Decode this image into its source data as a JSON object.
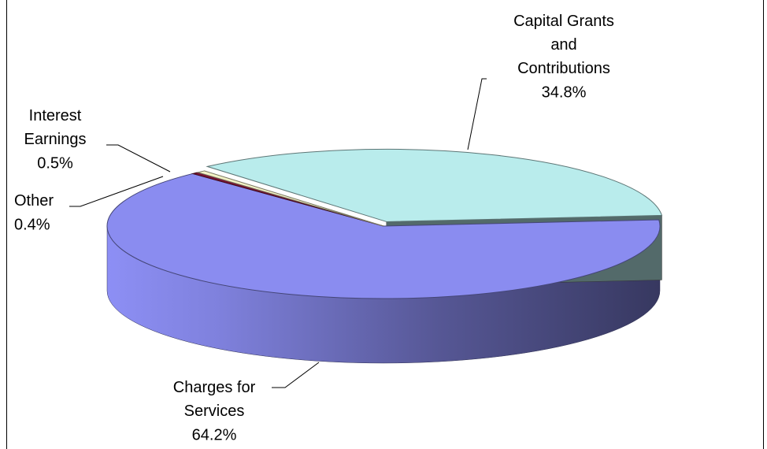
{
  "chart_data": {
    "type": "pie3d",
    "categories": [
      "Charges for\nServices",
      "Other",
      "Interest\nEarnings",
      "Capital Grants\nand\nContributions"
    ],
    "values": [
      64.2,
      0.4,
      0.5,
      34.8
    ],
    "value_labels": [
      "64.2%",
      "0.4%",
      "0.5%",
      "34.8%"
    ],
    "colors": [
      "#8a8cf0",
      "#7a1434",
      "#f3f2c6",
      "#b9ecec"
    ]
  }
}
